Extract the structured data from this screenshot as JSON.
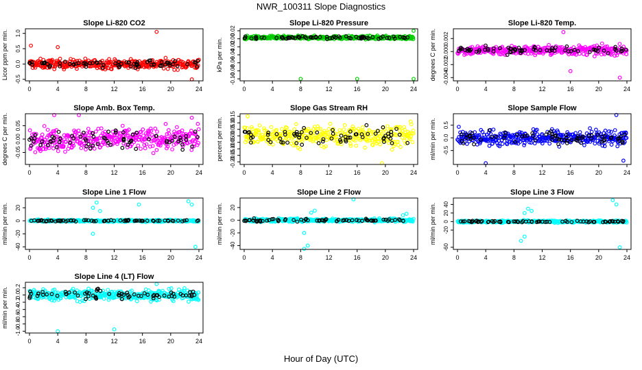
{
  "title": "NWR_100311  Slope Diagnostics",
  "xlabel": "Hour of Day (UTC)",
  "chart_data": [
    {
      "type": "scatter",
      "title": "Slope Li-820 CO2",
      "xlabel": "Hour of Day (UTC)",
      "ylabel": "Licor ppm per min.",
      "color": "#ff0000",
      "xlim": [
        0,
        24
      ],
      "ylim": [
        -0.55,
        1.15
      ],
      "yticks": [
        -0.5,
        0,
        0.5,
        1.0
      ],
      "ytick_labels": [
        "-0.5",
        "0.0",
        "0.5",
        "1.0"
      ],
      "xticks": [
        0,
        4,
        8,
        12,
        16,
        20,
        24
      ],
      "noise": {
        "center": 0.0,
        "spread": 0.15
      },
      "outliers": [
        [
          18,
          1.05
        ],
        [
          23,
          -0.5
        ],
        [
          4,
          0.55
        ],
        [
          0.2,
          0.6
        ]
      ]
    },
    {
      "type": "scatter",
      "title": "Slope Li-820 Pressure",
      "xlabel": "Hour of Day (UTC)",
      "ylabel": "kPa per min.",
      "color": "#00cc00",
      "xlim": [
        0,
        24
      ],
      "ylim": [
        -0.105,
        0.025
      ],
      "yticks": [
        -0.1,
        -0.08,
        -0.06,
        -0.04,
        -0.02,
        0.0,
        0.02
      ],
      "ytick_labels": [
        "-0.10",
        "-0.08",
        "-0.06",
        "-0.04",
        "-0.02",
        "0.00",
        "0.02"
      ],
      "xticks": [
        0,
        4,
        8,
        12,
        16,
        20,
        24
      ],
      "noise": {
        "center": 0.003,
        "spread": 0.004
      },
      "outliers": [
        [
          8,
          -0.1
        ],
        [
          16,
          -0.1
        ],
        [
          24,
          -0.1
        ],
        [
          24,
          0.02
        ]
      ]
    },
    {
      "type": "scatter",
      "title": "Slope Li-820 Temp.",
      "xlabel": "Hour of Day (UTC)",
      "ylabel": "degrees C per min.",
      "color": "#ff00ff",
      "xlim": [
        0,
        24
      ],
      "ylim": [
        -0.0045,
        0.0035
      ],
      "yticks": [
        -0.004,
        -0.002,
        0.0,
        0.002
      ],
      "ytick_labels": [
        "-0.004",
        "-0.002",
        "0.000",
        "0.002"
      ],
      "xticks": [
        0,
        4,
        8,
        12,
        16,
        20,
        24
      ],
      "noise": {
        "center": 0.0002,
        "spread": 0.0007
      },
      "outliers": [
        [
          15,
          0.003
        ],
        [
          23,
          -0.004
        ],
        [
          16,
          -0.003
        ]
      ]
    },
    {
      "type": "scatter",
      "title": "Slope Amb. Box Temp.",
      "xlabel": "Hour of Day (UTC)",
      "ylabel": "degrees C per min.",
      "color": "#ff00ff",
      "xlim": [
        0,
        24
      ],
      "ylim": [
        -0.095,
        0.095
      ],
      "yticks": [
        -0.05,
        0.0,
        0.05
      ],
      "ytick_labels": [
        "-0.05",
        "0.00",
        "0.05"
      ],
      "xticks": [
        0,
        4,
        8,
        12,
        16,
        20,
        24
      ],
      "noise": {
        "center": 0.0,
        "spread": 0.04
      },
      "outliers": [
        [
          3.5,
          0.09
        ],
        [
          7,
          0.09
        ],
        [
          23,
          0.08
        ]
      ]
    },
    {
      "type": "scatter",
      "title": "Slope Gas Stream RH",
      "xlabel": "Hour of Day (UTC)",
      "ylabel": "percent per min.",
      "color": "#ffff00",
      "xlim": [
        0,
        24
      ],
      "ylim": [
        -0.22,
        0.17
      ],
      "yticks": [
        -0.2,
        -0.15,
        -0.1,
        -0.05,
        0.0,
        0.05,
        0.1,
        0.15
      ],
      "ytick_labels": [
        "-0.20",
        "-0.15",
        "-0.10",
        "-0.05",
        "0.00",
        "0.05",
        "0.10",
        "0.15"
      ],
      "xticks": [
        0,
        4,
        8,
        12,
        16,
        20,
        24
      ],
      "noise": {
        "center": 0.0,
        "spread": 0.08
      },
      "outliers": [
        [
          19.5,
          -0.21
        ],
        [
          0.5,
          0.15
        ]
      ]
    },
    {
      "type": "scatter",
      "title": "Slope Sample Flow",
      "xlabel": "Hour of Day (UTC)",
      "ylabel": "ml/min per min.",
      "color": "#0000ff",
      "xlim": [
        0,
        24
      ],
      "ylim": [
        -1.05,
        0.95
      ],
      "yticks": [
        -0.5,
        0.0,
        0.5
      ],
      "ytick_labels": [
        "-0.5",
        "0.0",
        "0.5"
      ],
      "xticks": [
        0,
        4,
        8,
        12,
        16,
        20,
        24
      ],
      "noise": {
        "center": 0.0,
        "spread": 0.3
      },
      "outliers": [
        [
          4,
          -1.0
        ],
        [
          23.5,
          -0.9
        ],
        [
          22.5,
          0.9
        ]
      ]
    },
    {
      "type": "scatter",
      "title": "Slope Line 1 Flow",
      "xlabel": "Hour of Day (UTC)",
      "ylabel": "ml/min per min.",
      "color": "#00ffff",
      "xlim": [
        0,
        24
      ],
      "ylim": [
        -44,
        35
      ],
      "yticks": [
        -40,
        -20,
        0,
        20
      ],
      "ytick_labels": [
        "-40",
        "-20",
        "0",
        "20"
      ],
      "xticks": [
        0,
        4,
        8,
        12,
        16,
        20,
        24
      ],
      "noise": {
        "center": 0.0,
        "spread": 1.5
      },
      "outliers": [
        [
          9,
          20
        ],
        [
          9.5,
          28
        ],
        [
          10,
          15
        ],
        [
          9,
          -20
        ],
        [
          15.5,
          25
        ],
        [
          22.5,
          30
        ],
        [
          23,
          25
        ],
        [
          23.5,
          -40
        ]
      ]
    },
    {
      "type": "scatter",
      "title": "Slope Line 2 Flow",
      "xlabel": "Hour of Day (UTC)",
      "ylabel": "ml/min per min.",
      "color": "#00ffff",
      "xlim": [
        0,
        24
      ],
      "ylim": [
        -46,
        35
      ],
      "yticks": [
        -40,
        -20,
        0,
        20
      ],
      "ytick_labels": [
        "-40",
        "-20",
        "0",
        "20"
      ],
      "xticks": [
        0,
        4,
        8,
        12,
        16,
        20,
        24
      ],
      "noise": {
        "center": 0.0,
        "spread": 2.5
      },
      "outliers": [
        [
          8.5,
          -45
        ],
        [
          9,
          -40
        ],
        [
          8.5,
          -20
        ],
        [
          10,
          15
        ],
        [
          9.5,
          12
        ],
        [
          15.5,
          33
        ],
        [
          22.5,
          8
        ],
        [
          23,
          10
        ]
      ]
    },
    {
      "type": "scatter",
      "title": "Slope Line 3 Flow",
      "xlabel": "Hour of Day (UTC)",
      "ylabel": "ml/min per min.",
      "color": "#00ffff",
      "xlim": [
        0,
        24
      ],
      "ylim": [
        -65,
        55
      ],
      "yticks": [
        -60,
        -20,
        0,
        20,
        40
      ],
      "ytick_labels": [
        "-60",
        "-20",
        "0",
        "20",
        "40"
      ],
      "xticks": [
        0,
        4,
        8,
        12,
        16,
        20,
        24
      ],
      "noise": {
        "center": 0.0,
        "spread": 2.5
      },
      "outliers": [
        [
          9,
          -45
        ],
        [
          9.5,
          -35
        ],
        [
          10,
          30
        ],
        [
          9.5,
          20
        ],
        [
          10.5,
          25
        ],
        [
          22,
          50
        ],
        [
          22.5,
          40
        ],
        [
          23,
          -60
        ]
      ]
    },
    {
      "type": "scatter",
      "title": "Slope Line 4 (LT) Flow",
      "xlabel": "Hour of Day (UTC)",
      "ylabel": "ml/min per min.",
      "color": "#00ffff",
      "xlim": [
        0,
        24
      ],
      "ylim": [
        -1.05,
        0.35
      ],
      "yticks": [
        -1.0,
        -0.8,
        -0.6,
        -0.4,
        -0.2,
        0.0,
        0.2
      ],
      "ytick_labels": [
        "-1.0",
        "-0.8",
        "-0.6",
        "-0.4",
        "-0.2",
        "0.0",
        "0.2"
      ],
      "xticks": [
        0,
        4,
        8,
        12,
        16,
        20,
        24
      ],
      "noise": {
        "center": 0.0,
        "spread": 0.15
      },
      "outliers": [
        [
          4,
          -1.0
        ],
        [
          12,
          -0.95
        ],
        [
          18,
          0.3
        ]
      ]
    }
  ]
}
